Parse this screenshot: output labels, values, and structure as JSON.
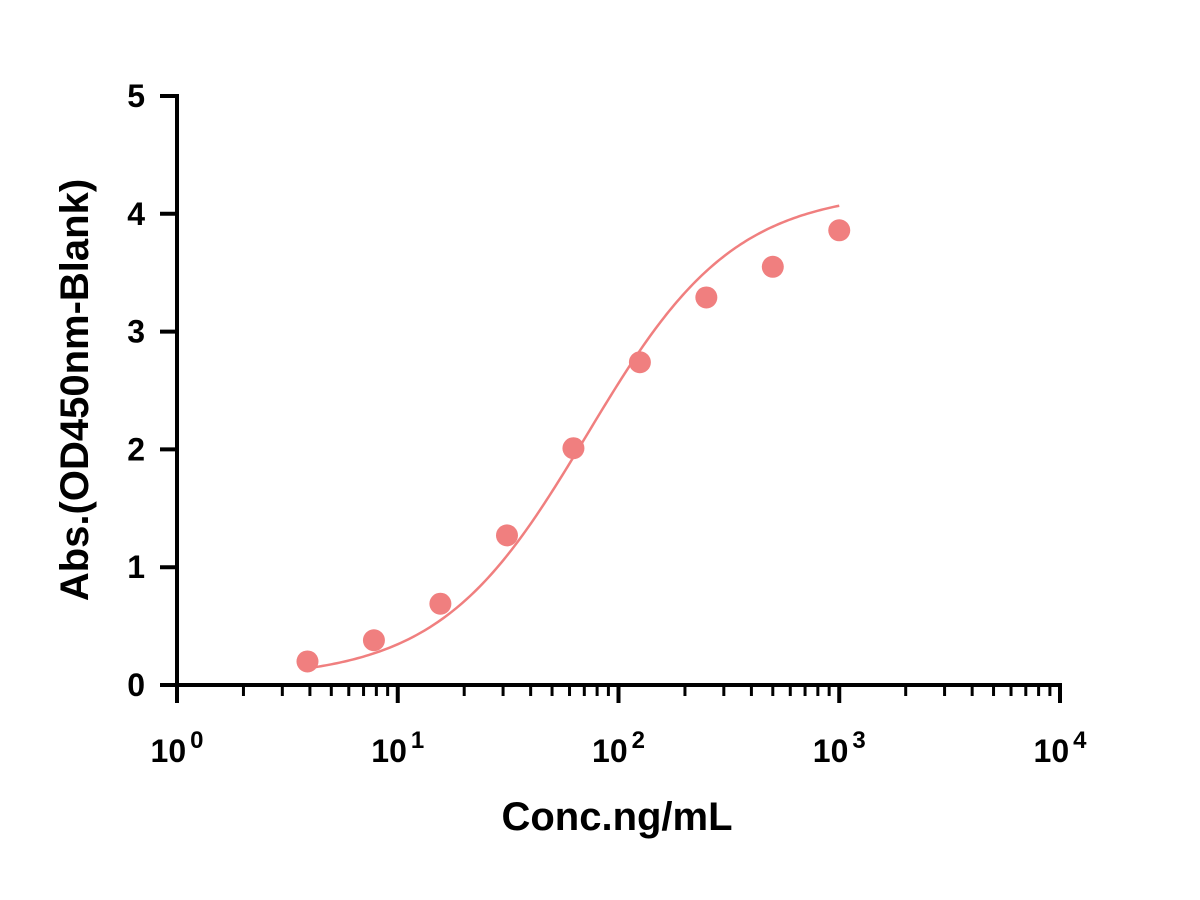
{
  "chart_data": {
    "type": "scatter",
    "xlabel": "Conc.ng/mL",
    "ylabel": "Abs.(OD450nm-Blank)",
    "x_scale": "log10",
    "xlim": [
      1,
      10000
    ],
    "ylim": [
      0,
      5
    ],
    "x_ticks": [
      {
        "base": "10",
        "exp": "0"
      },
      {
        "base": "10",
        "exp": "1"
      },
      {
        "base": "10",
        "exp": "2"
      },
      {
        "base": "10",
        "exp": "3"
      },
      {
        "base": "10",
        "exp": "4"
      }
    ],
    "y_ticks": [
      "0",
      "1",
      "2",
      "3",
      "4",
      "5"
    ],
    "grid": false,
    "legend": "none",
    "series": [
      {
        "color": "#f07f7f",
        "fit": "four-parameter logistic curve",
        "points": [
          {
            "x": 3.9,
            "y": 0.2
          },
          {
            "x": 7.8,
            "y": 0.38
          },
          {
            "x": 15.6,
            "y": 0.69
          },
          {
            "x": 31.25,
            "y": 1.27
          },
          {
            "x": 62.5,
            "y": 2.01
          },
          {
            "x": 125,
            "y": 2.74
          },
          {
            "x": 250,
            "y": 3.29
          },
          {
            "x": 500,
            "y": 3.55
          },
          {
            "x": 1000,
            "y": 3.86
          }
        ]
      }
    ]
  }
}
